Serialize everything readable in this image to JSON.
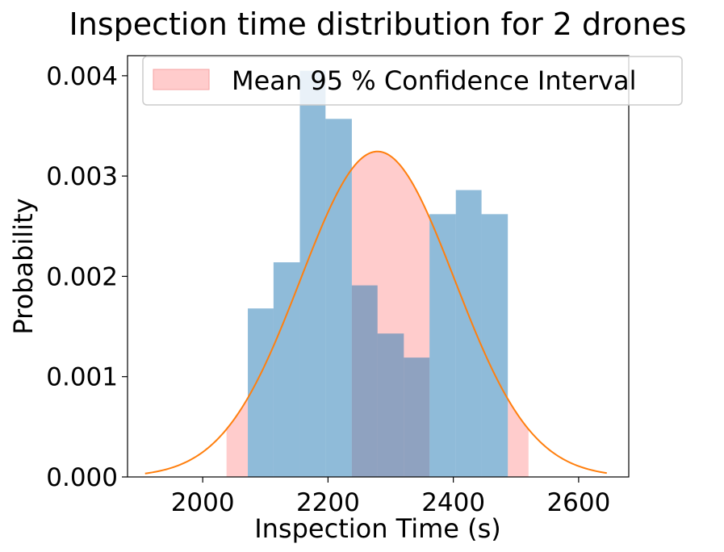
{
  "chart_data": {
    "type": "histogram",
    "title": "Inspection time distribution for 2 drones",
    "xlabel": "Inspection Time (s)",
    "ylabel": "Probability",
    "xlim": [
      1880,
      2680
    ],
    "ylim": [
      0,
      0.0042
    ],
    "xticks": [
      2000,
      2200,
      2400,
      2600
    ],
    "xtick_labels": [
      "2000",
      "2200",
      "2400",
      "2600"
    ],
    "yticks": [
      0,
      0.001,
      0.002,
      0.003,
      0.004
    ],
    "ytick_labels": [
      "0.000",
      "0.001",
      "0.002",
      "0.003",
      "0.004"
    ],
    "grid": false,
    "legend": {
      "placement": "top",
      "entries": [
        {
          "label": "Mean 95 % Confidence Interval",
          "color": "#ffcccc"
        }
      ]
    },
    "histogram": {
      "color": "#8fb9da",
      "bins": [
        {
          "x0": 2072,
          "x1": 2113,
          "value": 0.00168
        },
        {
          "x0": 2113,
          "x1": 2155,
          "value": 0.00214
        },
        {
          "x0": 2155,
          "x1": 2196,
          "value": 0.00405
        },
        {
          "x0": 2196,
          "x1": 2238,
          "value": 0.00357
        },
        {
          "x0": 2238,
          "x1": 2279,
          "value": 0.00191
        },
        {
          "x0": 2279,
          "x1": 2321,
          "value": 0.00143
        },
        {
          "x0": 2321,
          "x1": 2362,
          "value": 0.00119
        },
        {
          "x0": 2362,
          "x1": 2404,
          "value": 0.00262
        },
        {
          "x0": 2404,
          "x1": 2445,
          "value": 0.00286
        },
        {
          "x0": 2445,
          "x1": 2487,
          "value": 0.00262
        }
      ]
    },
    "confidence_interval": {
      "color": "#ffcccc",
      "regions": [
        [
          2038,
          2072
        ],
        [
          2238,
          2362
        ],
        [
          2487,
          2520
        ]
      ]
    },
    "normal_curve": {
      "color": "#ff7f0e",
      "mean": 2279,
      "std": 123,
      "peak": 0.003245,
      "x_range": [
        1908,
        2645
      ]
    }
  }
}
